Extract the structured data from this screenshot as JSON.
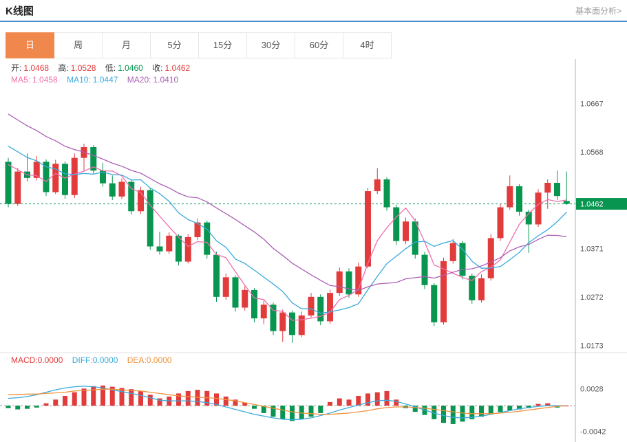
{
  "header": {
    "title": "K线图",
    "link": "基本面分析>"
  },
  "theme": {
    "accent_orange": "#f0884e",
    "header_line_blue": "#4a8fc7",
    "link_gray": "#999999",
    "up_red": "#e23b3b",
    "down_green": "#089550"
  },
  "tabs": {
    "items": [
      {
        "label": "日",
        "active": true
      },
      {
        "label": "周",
        "active": false
      },
      {
        "label": "月",
        "active": false
      },
      {
        "label": "5分",
        "active": false
      },
      {
        "label": "15分",
        "active": false
      },
      {
        "label": "30分",
        "active": false
      },
      {
        "label": "60分",
        "active": false
      },
      {
        "label": "4时",
        "active": false
      }
    ]
  },
  "legend": {
    "ohlc": [
      {
        "label": "开:",
        "value": "1.0468",
        "color": "#e23b3b"
      },
      {
        "label": "高:",
        "value": "1.0528",
        "color": "#e23b3b"
      },
      {
        "label": "低:",
        "value": "1.0460",
        "color": "#089550"
      },
      {
        "label": "收:",
        "value": "1.0462",
        "color": "#e23b3b"
      }
    ],
    "ma": [
      {
        "label": "MA5:",
        "value": "1.0458",
        "color": "#f06eae"
      },
      {
        "label": "MA10:",
        "value": "1.0447",
        "color": "#39a9dc"
      },
      {
        "label": "MA20:",
        "value": "1.0410",
        "color": "#ab5fb5"
      }
    ],
    "macd": [
      {
        "label": "MACD:",
        "value": "0.0000",
        "color": "#e23b3b"
      },
      {
        "label": "DIFF:",
        "value": "0.0000",
        "color": "#39a9dc"
      },
      {
        "label": "DEA:",
        "value": "0.0000",
        "color": "#f0923c"
      }
    ]
  },
  "axis": {
    "price_ticks": [
      {
        "label": "1.0667",
        "price": 1.0667
      },
      {
        "label": "1.0568",
        "price": 1.0568
      },
      {
        "label": "1.0371",
        "price": 1.0371
      },
      {
        "label": "1.0272",
        "price": 1.0272
      },
      {
        "label": "1.0173",
        "price": 1.0173
      }
    ],
    "current_price": {
      "label": "1.0462",
      "price": 1.0462
    },
    "macd_ticks": [
      {
        "label": "0.0028",
        "value": 0.0028
      },
      {
        "label": "-0.0042",
        "value": -0.0042
      }
    ]
  },
  "chart_data": {
    "type": "candlestick",
    "title": "K线图",
    "timeframe": "日",
    "up_color": "#e23b3b",
    "down_color": "#089550",
    "latest": {
      "open": 1.0468,
      "high": 1.0528,
      "low": 1.046,
      "close": 1.0462,
      "ma5": 1.0458,
      "ma10": 1.0447,
      "ma20": 1.041
    },
    "price_axis": {
      "min": 1.0165,
      "max": 1.0755,
      "ticks": [
        1.0667,
        1.0568,
        1.0462,
        1.0371,
        1.0272,
        1.0173
      ]
    },
    "current_price": 1.0462,
    "candles": [
      [
        1.0548,
        1.0556,
        1.0455,
        1.0462
      ],
      [
        1.0462,
        1.0535,
        1.0458,
        1.0528
      ],
      [
        1.0528,
        1.0565,
        1.0508,
        1.0515
      ],
      [
        1.0515,
        1.056,
        1.051,
        1.0548
      ],
      [
        1.0548,
        1.0553,
        1.0478,
        1.0486
      ],
      [
        1.0486,
        1.0552,
        1.0482,
        1.0544
      ],
      [
        1.0544,
        1.0549,
        1.0472,
        1.048
      ],
      [
        1.048,
        1.0565,
        1.0474,
        1.0556
      ],
      [
        1.0556,
        1.0585,
        1.053,
        1.0578
      ],
      [
        1.0578,
        1.0582,
        1.0522,
        1.053
      ],
      [
        1.053,
        1.0546,
        1.0497,
        1.0504
      ],
      [
        1.0504,
        1.052,
        1.047,
        1.0477
      ],
      [
        1.0477,
        1.0514,
        1.0472,
        1.0507
      ],
      [
        1.0507,
        1.0512,
        1.044,
        1.0447
      ],
      [
        1.0447,
        1.0497,
        1.0442,
        1.049
      ],
      [
        1.049,
        1.0494,
        1.0368,
        1.0375
      ],
      [
        1.0375,
        1.0405,
        1.0358,
        1.0365
      ],
      [
        1.0365,
        1.0404,
        1.036,
        1.0397
      ],
      [
        1.0397,
        1.04,
        1.0336,
        1.0344
      ],
      [
        1.0344,
        1.04,
        1.034,
        1.0394
      ],
      [
        1.0394,
        1.0432,
        1.0388,
        1.0424
      ],
      [
        1.0424,
        1.0428,
        1.035,
        1.0358
      ],
      [
        1.0358,
        1.0364,
        1.0262,
        1.0272
      ],
      [
        1.0272,
        1.032,
        1.0266,
        1.0312
      ],
      [
        1.0312,
        1.0316,
        1.0242,
        1.025
      ],
      [
        1.025,
        1.0294,
        1.0244,
        1.0286
      ],
      [
        1.0286,
        1.029,
        1.022,
        1.0228
      ],
      [
        1.0228,
        1.0264,
        1.0216,
        1.0256
      ],
      [
        1.0256,
        1.026,
        1.0194,
        1.0202
      ],
      [
        1.0202,
        1.0246,
        1.018,
        1.024
      ],
      [
        1.024,
        1.0244,
        1.0178,
        1.0194
      ],
      [
        1.0194,
        1.0242,
        1.019,
        1.0234
      ],
      [
        1.0234,
        1.028,
        1.023,
        1.0272
      ],
      [
        1.0272,
        1.0277,
        1.0214,
        1.0222
      ],
      [
        1.0222,
        1.0287,
        1.0217,
        1.028
      ],
      [
        1.028,
        1.0332,
        1.0274,
        1.0324
      ],
      [
        1.0324,
        1.033,
        1.027,
        1.0277
      ],
      [
        1.0277,
        1.0342,
        1.0272,
        1.0334
      ],
      [
        1.0334,
        1.0495,
        1.033,
        1.0488
      ],
      [
        1.0488,
        1.0535,
        1.0482,
        1.0512
      ],
      [
        1.0512,
        1.0516,
        1.0448,
        1.0455
      ],
      [
        1.0455,
        1.046,
        1.0378,
        1.0386
      ],
      [
        1.0386,
        1.0434,
        1.038,
        1.0426
      ],
      [
        1.0426,
        1.0432,
        1.035,
        1.0358
      ],
      [
        1.0358,
        1.0364,
        1.0288,
        1.0296
      ],
      [
        1.0296,
        1.03,
        1.0212,
        1.022
      ],
      [
        1.022,
        1.0352,
        1.0215,
        1.0345
      ],
      [
        1.0345,
        1.039,
        1.034,
        1.0382
      ],
      [
        1.0382,
        1.0386,
        1.0308,
        1.0315
      ],
      [
        1.0315,
        1.032,
        1.0258,
        1.0265
      ],
      [
        1.0265,
        1.0318,
        1.026,
        1.031
      ],
      [
        1.031,
        1.04,
        1.0305,
        1.0392
      ],
      [
        1.0392,
        1.0462,
        1.0386,
        1.0455
      ],
      [
        1.0455,
        1.052,
        1.045,
        1.0498
      ],
      [
        1.0498,
        1.0502,
        1.0438,
        1.0446
      ],
      [
        1.0446,
        1.045,
        1.0362,
        1.042
      ],
      [
        1.042,
        1.0492,
        1.0415,
        1.0485
      ],
      [
        1.0485,
        1.0512,
        1.0452,
        1.0505
      ],
      [
        1.0505,
        1.053,
        1.047,
        1.0478
      ],
      [
        1.0468,
        1.0528,
        1.046,
        1.0462
      ]
    ],
    "ma_periods": [
      5,
      10,
      20
    ],
    "ma_colors": [
      "#f06eae",
      "#39a9dc",
      "#ab5fb5"
    ],
    "ma_seed_closes": [
      1.078,
      1.0768,
      1.0755,
      1.0742,
      1.073,
      1.0718,
      1.0705,
      1.0692,
      1.068,
      1.0668,
      1.0655,
      1.0642,
      1.063,
      1.0618,
      1.0605,
      1.0592,
      1.058,
      1.0568,
      1.0556,
      1.0545
    ],
    "macd": {
      "axis": {
        "min": -0.0057,
        "max": 0.0062,
        "ticks": [
          0.0028,
          -0.0042
        ]
      },
      "diff_color": "#39a9dc",
      "dea_color": "#f0923c",
      "hist": [
        -0.0004,
        -0.0006,
        -0.0005,
        -0.0003,
        0.0004,
        0.001,
        0.0016,
        0.0022,
        0.0028,
        0.0032,
        0.0033,
        0.0031,
        0.0029,
        0.0027,
        0.0024,
        0.0018,
        0.0012,
        0.0015,
        0.002,
        0.0024,
        0.0026,
        0.0024,
        0.002,
        0.0015,
        0.001,
        0.0005,
        -0.0005,
        -0.0012,
        -0.0018,
        -0.0022,
        -0.0025,
        -0.0022,
        -0.0018,
        -0.0012,
        0.0006,
        0.0012,
        0.001,
        0.0016,
        0.002,
        0.0022,
        0.0024,
        0.001,
        -0.0004,
        -0.001,
        -0.0015,
        -0.0022,
        -0.0028,
        -0.003,
        -0.0026,
        -0.0022,
        -0.0018,
        -0.0014,
        -0.001,
        -0.0008,
        -0.0006,
        -0.0004,
        0.0003,
        0.0004,
        -0.0003,
        0.0
      ],
      "diff": [
        0.0012,
        0.0013,
        0.0015,
        0.0018,
        0.0022,
        0.0026,
        0.0029,
        0.0031,
        0.0032,
        0.0031,
        0.0029,
        0.0026,
        0.0023,
        0.002,
        0.0017,
        0.0013,
        0.0009,
        0.0008,
        0.0008,
        0.0008,
        0.0007,
        0.0005,
        0.0002,
        -0.0002,
        -0.0006,
        -0.001,
        -0.0014,
        -0.0017,
        -0.002,
        -0.0022,
        -0.0023,
        -0.0022,
        -0.002,
        -0.0016,
        -0.0012,
        -0.0007,
        -0.0003,
        0.0001,
        0.0005,
        0.0008,
        0.0009,
        0.0007,
        0.0003,
        -0.0002,
        -0.0007,
        -0.0012,
        -0.0016,
        -0.0019,
        -0.002,
        -0.0019,
        -0.0017,
        -0.0014,
        -0.0011,
        -0.0008,
        -0.0005,
        -0.0003,
        -0.0001,
        0.0,
        0.0,
        0.0
      ],
      "dea": [
        0.0018,
        0.0018,
        0.0019,
        0.0019,
        0.002,
        0.0021,
        0.0022,
        0.0024,
        0.0025,
        0.0026,
        0.0027,
        0.0027,
        0.0026,
        0.0025,
        0.0024,
        0.0022,
        0.002,
        0.0018,
        0.0016,
        0.0015,
        0.0014,
        0.0013,
        0.0012,
        0.001,
        0.0008,
        0.0005,
        0.0002,
        -0.0001,
        -0.0004,
        -0.0007,
        -0.001,
        -0.0012,
        -0.0013,
        -0.0014,
        -0.0014,
        -0.0013,
        -0.0012,
        -0.001,
        -0.0008,
        -0.0005,
        -0.0003,
        -0.0002,
        -0.0002,
        -0.0003,
        -0.0004,
        -0.0006,
        -0.0008,
        -0.001,
        -0.0012,
        -0.0013,
        -0.0013,
        -0.0013,
        -0.0012,
        -0.0011,
        -0.0009,
        -0.0007,
        -0.0005,
        -0.0003,
        -0.0001,
        0.0
      ]
    }
  }
}
